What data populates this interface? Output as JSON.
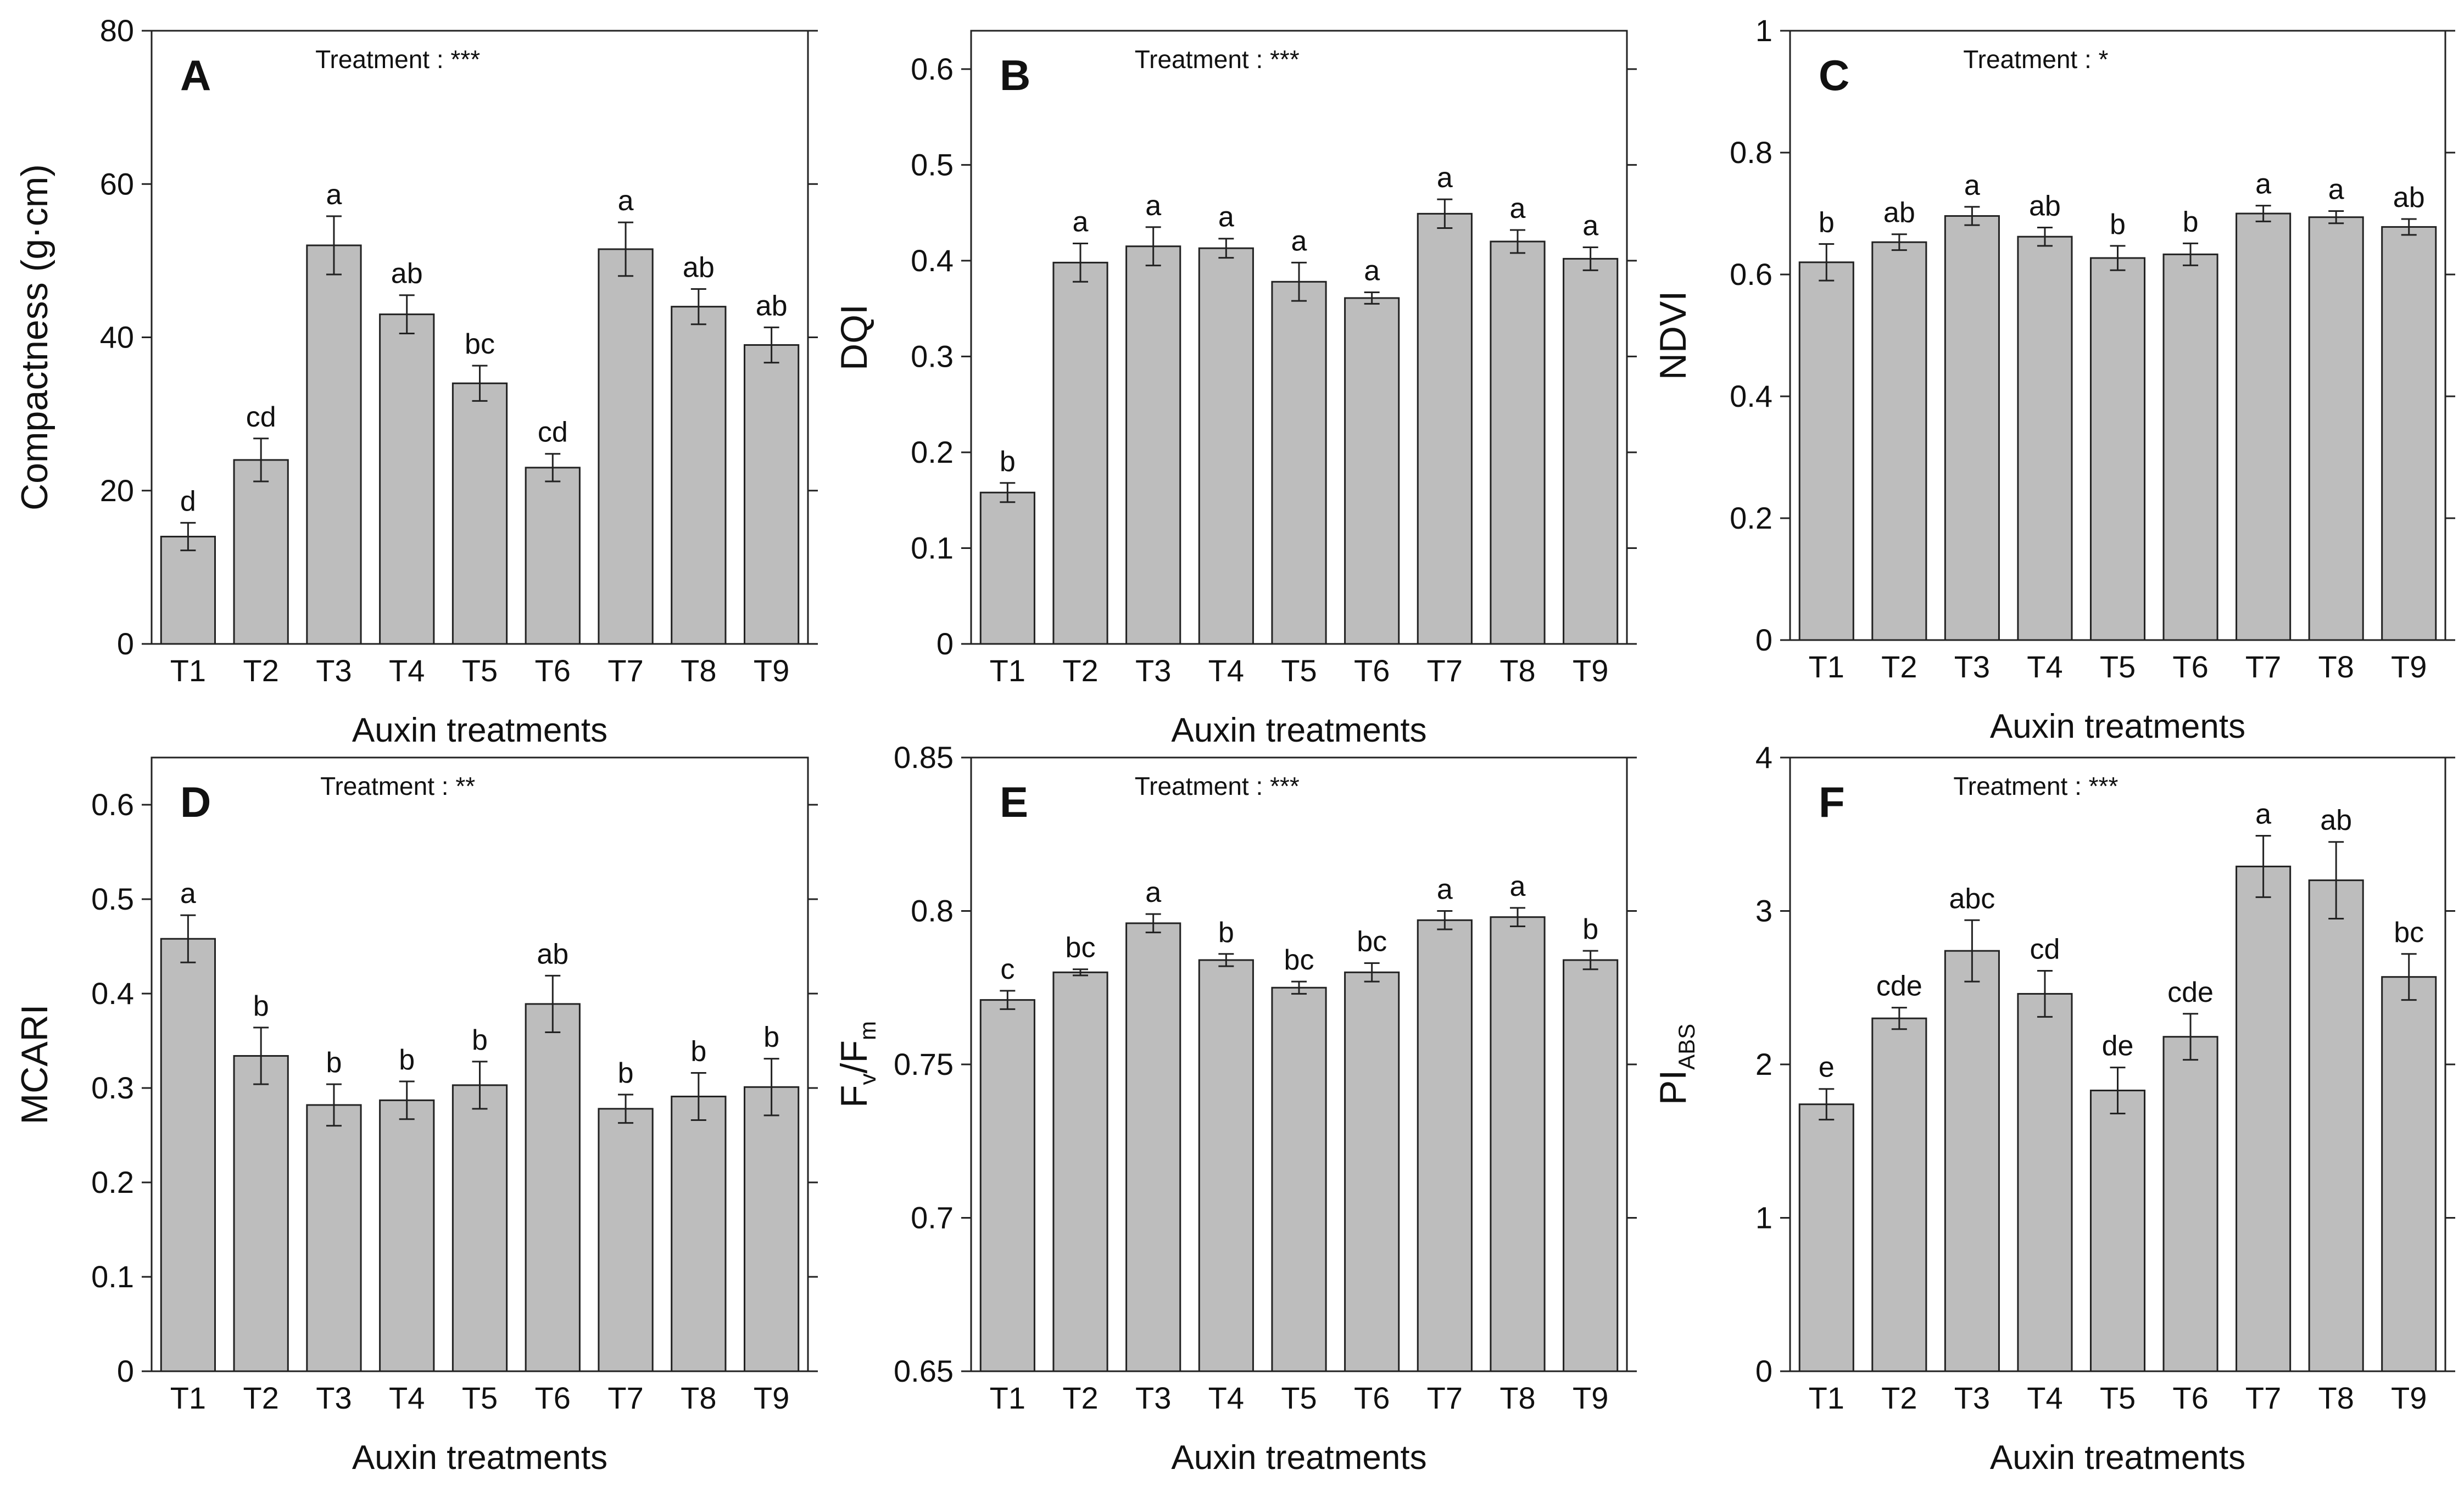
{
  "chart_data": [
    {
      "type": "bar",
      "panel_label": "A",
      "annotation": "Treatment : ***",
      "xlabel": "Auxin treatments",
      "ylabel": "Compactness (g·cm)",
      "ylabel_sub": "",
      "categories": [
        "T1",
        "T2",
        "T3",
        "T4",
        "T5",
        "T6",
        "T7",
        "T8",
        "T9"
      ],
      "values": [
        14,
        24,
        52,
        43,
        34,
        23,
        51.5,
        44,
        39
      ],
      "errors": [
        1.8,
        2.8,
        3.8,
        2.5,
        2.3,
        1.8,
        3.5,
        2.3,
        2.3
      ],
      "letters": [
        "d",
        "cd",
        "a",
        "ab",
        "bc",
        "cd",
        "a",
        "ab",
        "ab"
      ],
      "ylim": [
        0,
        80
      ],
      "yticks": [
        0,
        20,
        40,
        60,
        80
      ],
      "ytick_labels": [
        "0",
        "20",
        "40",
        "60",
        "80"
      ],
      "grid": false,
      "bar_color": "#bdbdbd"
    },
    {
      "type": "bar",
      "panel_label": "B",
      "annotation": "Treatment : ***",
      "xlabel": "Auxin treatments",
      "ylabel": "DQI",
      "ylabel_sub": "",
      "categories": [
        "T1",
        "T2",
        "T3",
        "T4",
        "T5",
        "T6",
        "T7",
        "T8",
        "T9"
      ],
      "values": [
        0.158,
        0.398,
        0.415,
        0.413,
        0.378,
        0.361,
        0.449,
        0.42,
        0.402
      ],
      "errors": [
        0.01,
        0.02,
        0.02,
        0.01,
        0.02,
        0.006,
        0.015,
        0.012,
        0.012
      ],
      "letters": [
        "b",
        "a",
        "a",
        "a",
        "a",
        "a",
        "a",
        "a",
        "a"
      ],
      "ylim": [
        0,
        0.64
      ],
      "yticks": [
        0,
        0.1,
        0.2,
        0.3,
        0.4,
        0.5,
        0.6
      ],
      "ytick_labels": [
        "0",
        "0.1",
        "0.2",
        "0.3",
        "0.4",
        "0.5",
        "0.6"
      ],
      "grid": false,
      "bar_color": "#bdbdbd"
    },
    {
      "type": "bar",
      "panel_label": "C",
      "annotation": "Treatment : *",
      "xlabel": "Auxin treatments",
      "ylabel": "NDVI",
      "ylabel_sub": "",
      "categories": [
        "T1",
        "T2",
        "T3",
        "T4",
        "T5",
        "T6",
        "T7",
        "T8",
        "T9"
      ],
      "values": [
        0.62,
        0.653,
        0.696,
        0.662,
        0.627,
        0.633,
        0.7,
        0.694,
        0.678
      ],
      "errors": [
        0.03,
        0.013,
        0.015,
        0.015,
        0.02,
        0.018,
        0.013,
        0.01,
        0.013
      ],
      "letters": [
        "b",
        "ab",
        "a",
        "ab",
        "b",
        "b",
        "a",
        "a",
        "ab"
      ],
      "ylim": [
        0,
        1
      ],
      "yticks": [
        0,
        0.2,
        0.4,
        0.6,
        0.8,
        1
      ],
      "ytick_labels": [
        "0",
        "0.2",
        "0.4",
        "0.6",
        "0.8",
        "1"
      ],
      "grid": false,
      "bar_color": "#bdbdbd"
    },
    {
      "type": "bar",
      "panel_label": "D",
      "annotation": "Treatment : **",
      "xlabel": "Auxin treatments",
      "ylabel": "MCARI",
      "ylabel_sub": "",
      "categories": [
        "T1",
        "T2",
        "T3",
        "T4",
        "T5",
        "T6",
        "T7",
        "T8",
        "T9"
      ],
      "values": [
        0.458,
        0.334,
        0.282,
        0.287,
        0.303,
        0.389,
        0.278,
        0.291,
        0.301
      ],
      "errors": [
        0.025,
        0.03,
        0.022,
        0.02,
        0.025,
        0.03,
        0.015,
        0.025,
        0.03
      ],
      "letters": [
        "a",
        "b",
        "b",
        "b",
        "b",
        "ab",
        "b",
        "b",
        "b"
      ],
      "ylim": [
        0,
        0.65
      ],
      "yticks": [
        0,
        0.1,
        0.2,
        0.3,
        0.4,
        0.5,
        0.6
      ],
      "ytick_labels": [
        "0",
        "0.1",
        "0.2",
        "0.3",
        "0.4",
        "0.5",
        "0.6"
      ],
      "grid": false,
      "bar_color": "#bdbdbd"
    },
    {
      "type": "bar",
      "panel_label": "E",
      "annotation": "Treatment : ***",
      "xlabel": "Auxin treatments",
      "ylabel": "F",
      "ylabel_sub": "v",
      "ylabel_mid": "/F",
      "ylabel_sub2": "m",
      "categories": [
        "T1",
        "T2",
        "T3",
        "T4",
        "T5",
        "T6",
        "T7",
        "T8",
        "T9"
      ],
      "values": [
        0.771,
        0.78,
        0.796,
        0.784,
        0.775,
        0.78,
        0.797,
        0.798,
        0.784
      ],
      "errors": [
        0.003,
        0.001,
        0.003,
        0.002,
        0.002,
        0.003,
        0.003,
        0.003,
        0.003
      ],
      "letters": [
        "c",
        "bc",
        "a",
        "b",
        "bc",
        "bc",
        "a",
        "a",
        "b"
      ],
      "ylim": [
        0.65,
        0.85
      ],
      "yticks": [
        0.65,
        0.7,
        0.75,
        0.8,
        0.85
      ],
      "ytick_labels": [
        "0.65",
        "0.7",
        "0.75",
        "0.8",
        "0.85"
      ],
      "grid": false,
      "bar_color": "#bdbdbd"
    },
    {
      "type": "bar",
      "panel_label": "F",
      "annotation": "Treatment : ***",
      "xlabel": "Auxin treatments",
      "ylabel": "PI",
      "ylabel_sub": "ABS",
      "categories": [
        "T1",
        "T2",
        "T3",
        "T4",
        "T5",
        "T6",
        "T7",
        "T8",
        "T9"
      ],
      "values": [
        1.74,
        2.3,
        2.74,
        2.46,
        1.83,
        2.18,
        3.29,
        3.2,
        2.57
      ],
      "errors": [
        0.1,
        0.07,
        0.2,
        0.15,
        0.15,
        0.15,
        0.2,
        0.25,
        0.15
      ],
      "letters": [
        "e",
        "cde",
        "abc",
        "cd",
        "de",
        "cde",
        "a",
        "ab",
        "bc"
      ],
      "ylim": [
        0,
        4
      ],
      "yticks": [
        0,
        1,
        2,
        3,
        4
      ],
      "ytick_labels": [
        "0",
        "1",
        "2",
        "3",
        "4"
      ],
      "grid": false,
      "bar_color": "#bdbdbd"
    }
  ]
}
